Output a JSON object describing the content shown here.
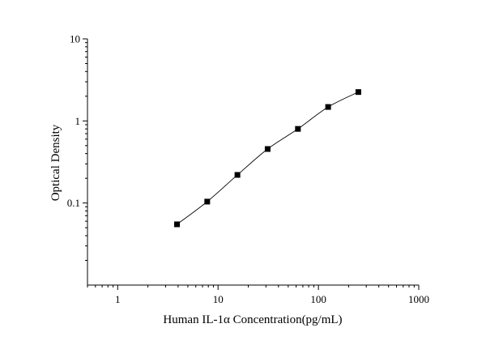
{
  "chart_data": {
    "type": "scatter",
    "title": "",
    "xlabel": "Human IL-1α Concentration(pg/mL)",
    "ylabel": "Optical Density",
    "x_scale": "log",
    "y_scale": "log",
    "xlim": [
      0.5,
      1000
    ],
    "ylim": [
      0.01,
      10
    ],
    "x_ticks": [
      1,
      10,
      100,
      1000
    ],
    "x_tick_labels": [
      "1",
      "10",
      "100",
      "1000"
    ],
    "y_ticks": [
      0.1,
      1,
      10
    ],
    "y_tick_labels": [
      "0.1",
      "1",
      "10"
    ],
    "grid": false,
    "legend": "none",
    "series": [
      {
        "x": [
          3.9,
          7.8,
          15.6,
          31.2,
          62.5,
          125,
          250
        ],
        "y": [
          0.055,
          0.104,
          0.22,
          0.455,
          0.8,
          1.48,
          2.25
        ],
        "marker": "square",
        "line": "curve",
        "color": "#000000"
      }
    ]
  }
}
